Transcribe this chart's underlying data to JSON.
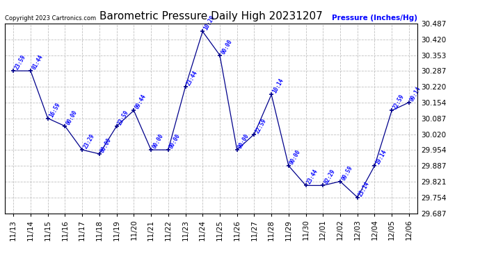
{
  "title": "Barometric Pressure Daily High 20231207",
  "ylabel": "Pressure (Inches/Hg)",
  "copyright_text": "Copyright 2023 Cartronics.com",
  "ylim_min": 29.687,
  "ylim_max": 30.487,
  "yticks": [
    29.687,
    29.754,
    29.821,
    29.887,
    29.954,
    30.02,
    30.087,
    30.154,
    30.22,
    30.287,
    30.353,
    30.42,
    30.487
  ],
  "dates": [
    "11/13",
    "11/14",
    "11/15",
    "11/16",
    "11/17",
    "11/18",
    "11/19",
    "11/20",
    "11/21",
    "11/22",
    "11/23",
    "11/24",
    "11/25",
    "11/26",
    "11/27",
    "11/28",
    "11/29",
    "11/30",
    "12/01",
    "12/02",
    "12/03",
    "12/04",
    "12/05",
    "12/06"
  ],
  "values": [
    30.287,
    30.287,
    30.087,
    30.054,
    29.954,
    29.937,
    30.054,
    30.12,
    29.954,
    29.954,
    30.22,
    30.453,
    30.353,
    29.954,
    30.02,
    30.187,
    29.887,
    29.804,
    29.804,
    29.821,
    29.754,
    29.887,
    30.12,
    30.154
  ],
  "time_labels": [
    "23:59",
    "01:44",
    "16:59",
    "00:00",
    "23:29",
    "00:00",
    "23:59",
    "09:44",
    "00:00",
    "00:00",
    "23:44",
    "10:29",
    "00:00",
    "00:00",
    "22:59",
    "10:14",
    "00:00",
    "23:44",
    "02:29",
    "09:59",
    "23:14",
    "19:14",
    "22:59",
    "09:14"
  ],
  "line_color": "#00008B",
  "marker_color": "#00008B",
  "label_color": "#0000FF",
  "ylabel_color": "#0000FF",
  "grid_color": "#C0C0C0",
  "bg_color": "#FFFFFF",
  "title_fontsize": 11,
  "tick_fontsize": 7.5,
  "ylabel_fontsize": 8
}
